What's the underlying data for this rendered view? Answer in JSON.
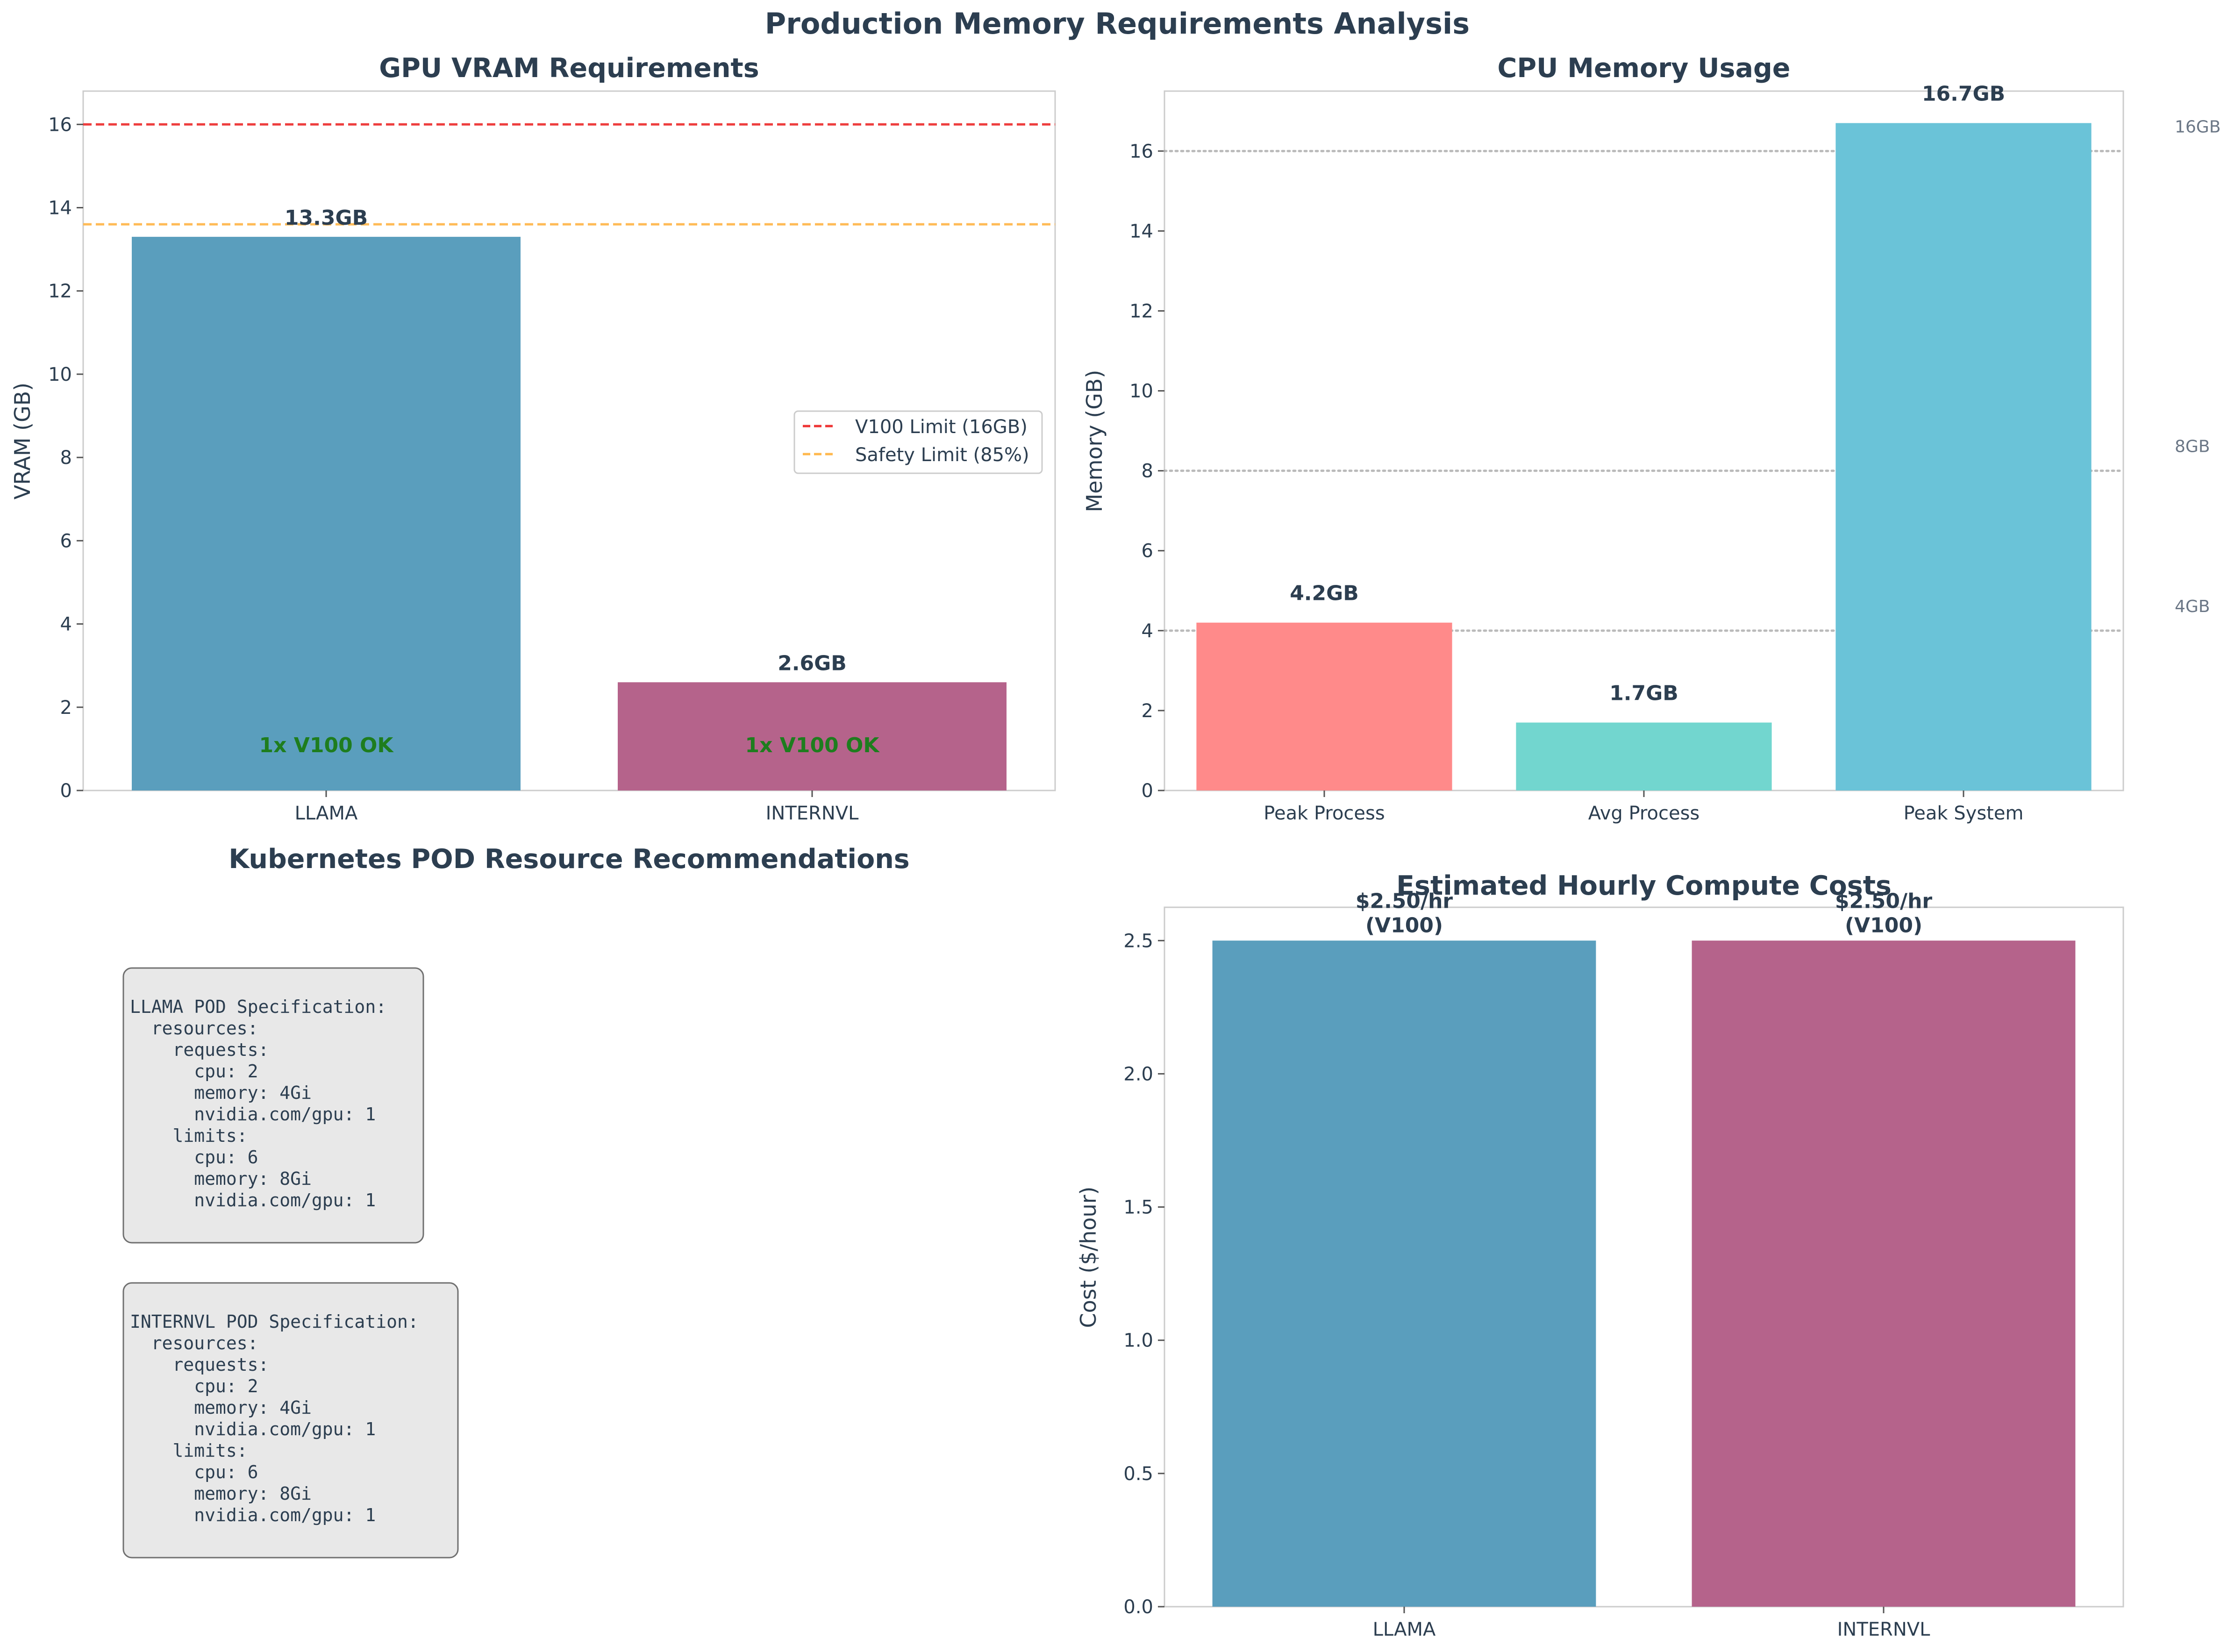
{
  "figure_title": "Production Memory Requirements Analysis",
  "colors": {
    "llama": "#5a9ebd",
    "internvl": "#b5638b",
    "peak_process": "#ff8a8a",
    "avg_process": "#72d6cf",
    "peak_system": "#6ac3d8",
    "v100_limit": "#ee3333",
    "safety_limit": "#ffb84d",
    "ok_text": "#1e7d1e"
  },
  "chart_data": [
    {
      "id": "gpu_vram",
      "type": "bar",
      "title": "GPU VRAM Requirements",
      "xlabel": "",
      "ylabel": "VRAM (GB)",
      "categories": [
        "LLAMA",
        "INTERNVL"
      ],
      "values": [
        13.3,
        2.6
      ],
      "value_labels": [
        "13.3GB",
        "2.6GB"
      ],
      "inner_labels": [
        "1x V100 OK",
        "1x V100 OK"
      ],
      "ylim": [
        0,
        16.8
      ],
      "yticks": [
        0,
        2,
        4,
        6,
        8,
        10,
        12,
        14,
        16
      ],
      "reference_lines": [
        {
          "name": "V100 Limit (16GB)",
          "y": 16,
          "style": "dashed",
          "color": "#ee3333"
        },
        {
          "name": "Safety Limit (85%)",
          "y": 13.6,
          "style": "dashed",
          "color": "#ffb84d"
        }
      ],
      "legend": "center-right",
      "grid": false
    },
    {
      "id": "cpu_memory",
      "type": "bar",
      "title": "CPU Memory Usage",
      "xlabel": "",
      "ylabel": "Memory (GB)",
      "categories": [
        "Peak Process",
        "Avg Process",
        "Peak System"
      ],
      "values": [
        4.2,
        1.7,
        16.7
      ],
      "value_labels": [
        "4.2GB",
        "1.7GB",
        "16.7GB"
      ],
      "ylim": [
        0,
        17.5
      ],
      "yticks": [
        0,
        2,
        4,
        6,
        8,
        10,
        12,
        14,
        16
      ],
      "reference_lines": [
        {
          "label": "4GB",
          "y": 4,
          "style": "dotted"
        },
        {
          "label": "8GB",
          "y": 8,
          "style": "dotted"
        },
        {
          "label": "16GB",
          "y": 16,
          "style": "dotted"
        }
      ],
      "grid": false
    },
    {
      "id": "hourly_cost",
      "type": "bar",
      "title": "Estimated Hourly Compute Costs",
      "xlabel": "",
      "ylabel": "Cost ($/hour)",
      "categories": [
        "LLAMA",
        "INTERNVL"
      ],
      "values": [
        2.5,
        2.5
      ],
      "value_labels": [
        [
          "$2.50/hr",
          "(V100)"
        ],
        [
          "$2.50/hr",
          "(V100)"
        ]
      ],
      "ylim": [
        0,
        2.625
      ],
      "yticks": [
        "0.0",
        "0.5",
        "1.0",
        "1.5",
        "2.0",
        "2.5"
      ],
      "grid": false
    }
  ],
  "k8s_panel": {
    "title": "Kubernetes POD Resource Recommendations",
    "specs": [
      {
        "lines": [
          "LLAMA POD Specification:",
          "  resources:",
          "    requests:",
          "      cpu: 2",
          "      memory: 4Gi",
          "      nvidia.com/gpu: 1",
          "    limits:",
          "      cpu: 6",
          "      memory: 8Gi",
          "      nvidia.com/gpu: 1"
        ]
      },
      {
        "lines": [
          "INTERNVL POD Specification:",
          "  resources:",
          "    requests:",
          "      cpu: 2",
          "      memory: 4Gi",
          "      nvidia.com/gpu: 1",
          "    limits:",
          "      cpu: 6",
          "      memory: 8Gi",
          "      nvidia.com/gpu: 1"
        ]
      }
    ]
  }
}
